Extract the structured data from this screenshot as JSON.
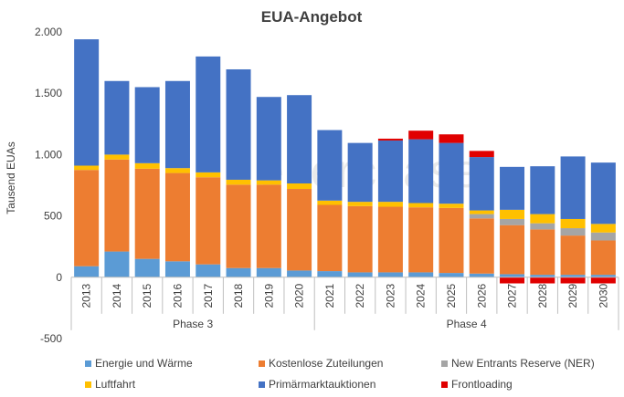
{
  "chart_data": {
    "type": "bar",
    "stacked": true,
    "title": "EUA-Angebot",
    "ylabel": "Tausend EUAs",
    "xlabel": "",
    "ylim": [
      -500,
      2000
    ],
    "yticks": [
      -500,
      0,
      500,
      1000,
      1500,
      2000
    ],
    "ytick_labels": [
      "-500",
      "0",
      "500",
      "1.000",
      "1.500",
      "2.000"
    ],
    "grid": false,
    "legend_position": "bottom",
    "watermark": "enerchase",
    "categories": [
      "2013",
      "2014",
      "2015",
      "2016",
      "2017",
      "2018",
      "2019",
      "2020",
      "2021",
      "2022",
      "2023",
      "2024",
      "2025",
      "2026",
      "2027",
      "2028",
      "2029",
      "2030"
    ],
    "phases": [
      {
        "label": "Phase 3",
        "from": "2013",
        "to": "2020"
      },
      {
        "label": "Phase 4",
        "from": "2021",
        "to": "2030"
      }
    ],
    "series": [
      {
        "name": "Energie und Wärme",
        "color": "#5b9bd5",
        "values": [
          90,
          210,
          150,
          130,
          105,
          75,
          75,
          55,
          50,
          40,
          40,
          40,
          35,
          30,
          25,
          20,
          20,
          20
        ]
      },
      {
        "name": "Kostenlose Zuteilungen",
        "color": "#ed7d31",
        "values": [
          785,
          750,
          735,
          720,
          710,
          680,
          680,
          665,
          540,
          540,
          535,
          530,
          530,
          450,
          400,
          370,
          320,
          280
        ]
      },
      {
        "name": "New Entrants Reserve (NER)",
        "color": "#a5a5a5",
        "values": [
          0,
          0,
          0,
          0,
          0,
          0,
          0,
          0,
          0,
          0,
          0,
          0,
          0,
          35,
          50,
          50,
          60,
          65
        ]
      },
      {
        "name": "Luftfahrt",
        "color": "#ffc000",
        "values": [
          35,
          40,
          45,
          40,
          40,
          40,
          35,
          45,
          35,
          35,
          40,
          35,
          35,
          30,
          75,
          75,
          75,
          70
        ]
      },
      {
        "name": "Primärmarktauktionen",
        "color": "#4472c4",
        "values": [
          1030,
          600,
          620,
          710,
          945,
          900,
          680,
          720,
          575,
          480,
          500,
          520,
          495,
          435,
          350,
          390,
          510,
          500
        ]
      },
      {
        "name": "Frontloading",
        "color": "#e00000",
        "values": [
          0,
          0,
          0,
          0,
          0,
          0,
          0,
          0,
          0,
          0,
          15,
          70,
          70,
          50,
          -50,
          -50,
          -50,
          -50
        ]
      }
    ]
  }
}
